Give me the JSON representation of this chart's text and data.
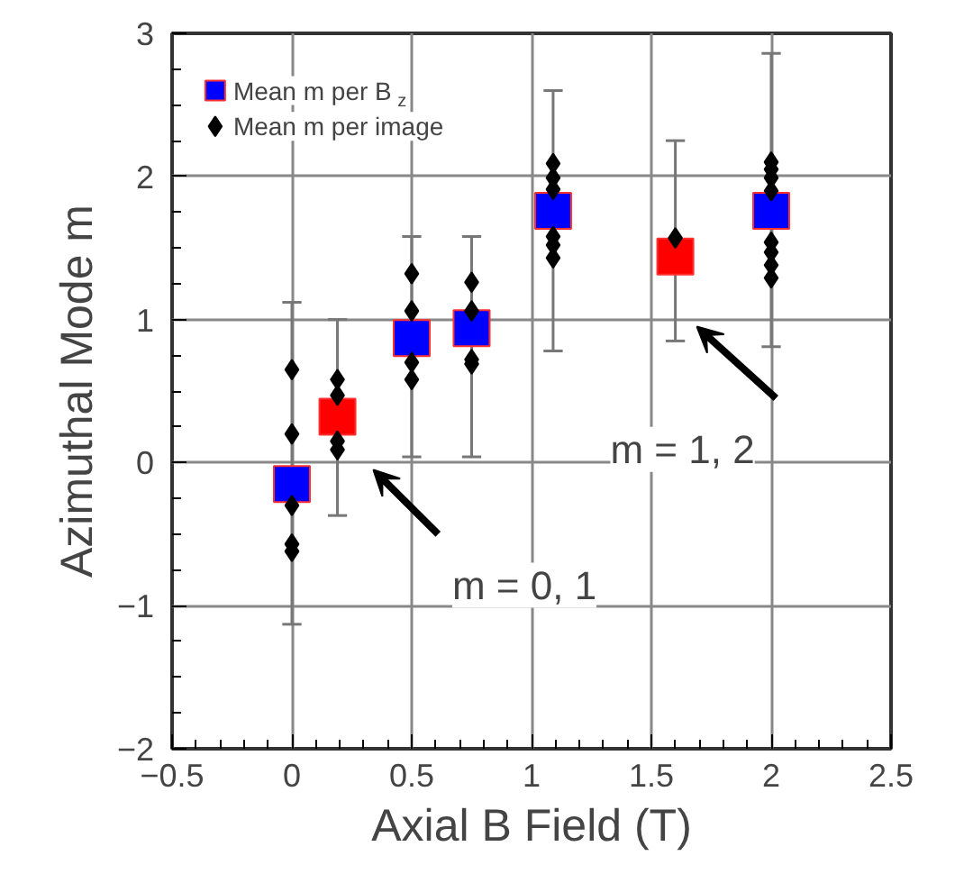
{
  "chart_data": {
    "type": "scatter",
    "xlabel": "Axial B Field (T)",
    "ylabel": "Azimuthal Mode m",
    "xlim": [
      -0.5,
      2.5
    ],
    "xticks": [
      -0.5,
      0,
      0.5,
      1,
      1.5,
      2,
      2.5
    ],
    "ylim": [
      -2,
      3
    ],
    "yticks": [
      -2,
      -1,
      0,
      1,
      2,
      3
    ],
    "grid": true,
    "legend": "top left",
    "series": [
      {
        "name": "Mean m per B$_{z}$",
        "marker": "square",
        "x": [
          0,
          0.19,
          0.5,
          0.75,
          1.09,
          1.6,
          2
        ],
        "values": [
          -0.15,
          0.32,
          0.87,
          0.94,
          1.76,
          1.44,
          1.76
        ],
        "colors": [
          "#0000ff",
          "#ff0000",
          "#0000ff",
          "#0000ff",
          "#0000ff",
          "#ff0000",
          "#0000ff"
        ],
        "errors": [
          [
            -1.13,
            1.12
          ],
          [
            -0.37,
            1.0
          ],
          [
            0.04,
            1.58
          ],
          [
            0.04,
            1.58
          ],
          [
            0.78,
            2.6
          ],
          [
            0.85,
            2.25
          ],
          [
            0.81,
            2.86
          ]
        ]
      },
      {
        "name": "Mean m per image",
        "marker": "diamond",
        "color": "#000000",
        "x": [
          0,
          0,
          0,
          0,
          0,
          0.19,
          0.19,
          0.19,
          0.19,
          0.5,
          0.5,
          0.5,
          0.5,
          0.75,
          0.75,
          0.75,
          0.75,
          1.09,
          1.09,
          1.09,
          1.09,
          1.09,
          1.09,
          1.6,
          2,
          2,
          2,
          2,
          2,
          2,
          2,
          2
        ],
        "values": [
          0.65,
          0.2,
          -0.3,
          -0.57,
          -0.62,
          0.58,
          0.47,
          0.15,
          0.09,
          1.32,
          1.06,
          0.7,
          0.58,
          1.26,
          1.06,
          0.72,
          0.69,
          2.09,
          1.99,
          1.91,
          1.58,
          1.52,
          1.43,
          1.57,
          2.1,
          2.05,
          1.99,
          1.9,
          1.54,
          1.47,
          1.38,
          1.29
        ]
      }
    ],
    "annotations": [
      "m = 0, 1",
      "m = 1, 2"
    ]
  }
}
